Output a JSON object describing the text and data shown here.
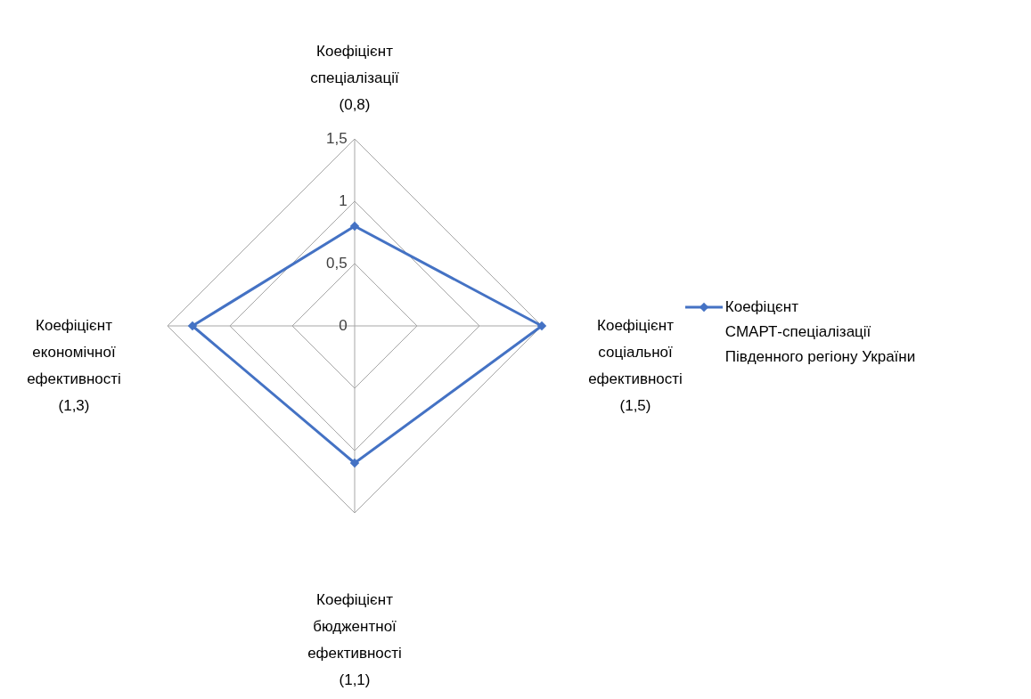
{
  "chart_data": {
    "type": "radar",
    "categories": [
      "Коефіцієнт спеціалізації (0,8)",
      "Коефіцієнт соціальної ефективності (1,5)",
      "Коефіцієнт бюджентної ефективності (1,1)",
      "Коефіцієнт економічної ефективності (1,3)"
    ],
    "series": [
      {
        "name": "Коефіцєнт СМАРТ-спеціалізації Південного регіону України",
        "color": "#4472c4",
        "values": [
          0.8,
          1.5,
          1.1,
          1.3
        ]
      }
    ],
    "ylim": [
      0,
      1.5
    ],
    "yticks": [
      0,
      {
        "value": 0.5,
        "label": "0,5"
      },
      1,
      {
        "value": 1.5,
        "label": "1,5"
      }
    ],
    "grid": true,
    "legend": "right",
    "marker": "diamond",
    "line_style": "solid"
  }
}
